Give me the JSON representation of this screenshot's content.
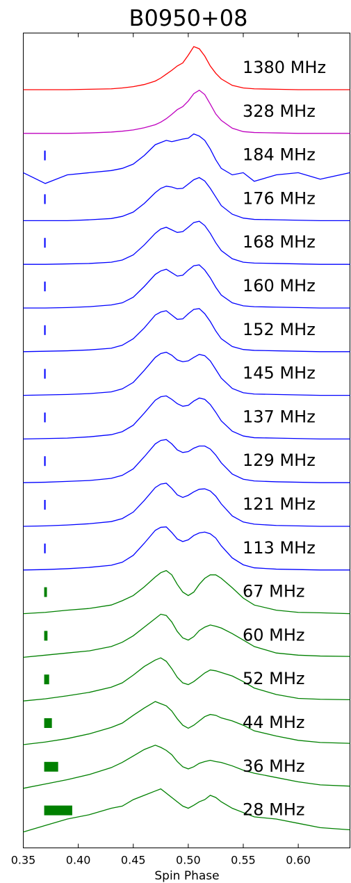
{
  "chart_data": {
    "type": "line",
    "title": "B0950+08",
    "x_label": "Spin Phase",
    "xlim": [
      0.35,
      0.647
    ],
    "xticks": [
      0.35,
      {
        "value": 0.4,
        "label": "0.40"
      },
      0.45,
      {
        "value": 0.5,
        "label": "0.50"
      },
      0.55,
      {
        "value": 0.6,
        "label": "0.60"
      }
    ],
    "resolution_x0": 0.369,
    "x": [
      0.35,
      0.37,
      0.39,
      0.41,
      0.43,
      0.44,
      0.45,
      0.46,
      0.47,
      0.475,
      0.48,
      0.485,
      0.49,
      0.495,
      0.5,
      0.505,
      0.51,
      0.515,
      0.52,
      0.525,
      0.53,
      0.54,
      0.55,
      0.56,
      0.58,
      0.6,
      0.62,
      0.647
    ],
    "series": [
      {
        "name": "1380 MHz",
        "color": "#ff0000",
        "values": [
          0,
          0,
          0,
          0.01,
          0.02,
          0.04,
          0.07,
          0.12,
          0.2,
          0.27,
          0.36,
          0.45,
          0.55,
          0.62,
          0.8,
          1,
          0.95,
          0.78,
          0.55,
          0.38,
          0.25,
          0.1,
          0.04,
          0.02,
          0.01,
          0,
          0,
          0
        ]
      },
      {
        "name": "328 MHz",
        "color": "#bf00bf",
        "values": [
          0,
          0,
          0,
          0.01,
          0.03,
          0.05,
          0.08,
          0.13,
          0.2,
          0.26,
          0.34,
          0.44,
          0.55,
          0.62,
          0.75,
          0.92,
          1,
          0.9,
          0.68,
          0.45,
          0.3,
          0.12,
          0.04,
          0.02,
          0.01,
          0,
          0,
          0
        ]
      },
      {
        "name": "184 MHz",
        "color": "#0000ff",
        "resolution": 0.0013,
        "values": [
          0.1,
          -0.15,
          0.05,
          0.1,
          0.15,
          0.2,
          0.3,
          0.5,
          0.75,
          0.8,
          0.85,
          0.82,
          0.85,
          0.88,
          0.9,
          1,
          0.95,
          0.85,
          0.65,
          0.4,
          0.2,
          0.05,
          0.1,
          -0.1,
          0.05,
          0.1,
          -0.05,
          0.1
        ]
      },
      {
        "name": "176 MHz",
        "color": "#0000ff",
        "resolution": 0.0013,
        "values": [
          0,
          0,
          0,
          0.02,
          0.05,
          0.1,
          0.2,
          0.4,
          0.65,
          0.75,
          0.8,
          0.78,
          0.74,
          0.75,
          0.85,
          0.95,
          1,
          0.92,
          0.75,
          0.55,
          0.35,
          0.15,
          0.06,
          0.03,
          0.02,
          0.01,
          0,
          0
        ]
      },
      {
        "name": "168 MHz",
        "color": "#0000ff",
        "resolution": 0.0013,
        "values": [
          0,
          0,
          0.01,
          0.02,
          0.05,
          0.1,
          0.22,
          0.45,
          0.72,
          0.82,
          0.86,
          0.8,
          0.74,
          0.76,
          0.86,
          0.97,
          1,
          0.9,
          0.72,
          0.5,
          0.32,
          0.13,
          0.05,
          0.03,
          0.02,
          0.01,
          0,
          0
        ]
      },
      {
        "name": "160 MHz",
        "color": "#0000ff",
        "resolution": 0.0013,
        "values": [
          0,
          0,
          0.01,
          0.03,
          0.07,
          0.12,
          0.25,
          0.5,
          0.78,
          0.86,
          0.9,
          0.82,
          0.74,
          0.76,
          0.88,
          0.98,
          1,
          0.88,
          0.7,
          0.48,
          0.3,
          0.12,
          0.05,
          0.03,
          0.02,
          0.01,
          0,
          0
        ]
      },
      {
        "name": "152 MHz",
        "color": "#0000ff",
        "resolution": 0.0013,
        "values": [
          0,
          0.01,
          0.02,
          0.04,
          0.08,
          0.15,
          0.3,
          0.55,
          0.85,
          0.92,
          0.95,
          0.85,
          0.75,
          0.76,
          0.88,
          0.98,
          1,
          0.88,
          0.7,
          0.48,
          0.3,
          0.12,
          0.05,
          0.03,
          0.02,
          0.01,
          0,
          0
        ]
      },
      {
        "name": "145 MHz",
        "color": "#0000ff",
        "resolution": 0.0013,
        "values": [
          0,
          0.01,
          0.02,
          0.04,
          0.08,
          0.15,
          0.3,
          0.58,
          0.88,
          0.97,
          1,
          0.93,
          0.82,
          0.78,
          0.8,
          0.88,
          0.95,
          0.92,
          0.8,
          0.6,
          0.4,
          0.16,
          0.06,
          0.03,
          0.02,
          0.01,
          0,
          0
        ]
      },
      {
        "name": "137 MHz",
        "color": "#0000ff",
        "resolution": 0.0013,
        "values": [
          0,
          0.01,
          0.02,
          0.05,
          0.1,
          0.17,
          0.32,
          0.6,
          0.9,
          0.98,
          1,
          0.92,
          0.82,
          0.76,
          0.78,
          0.88,
          0.95,
          0.92,
          0.8,
          0.62,
          0.42,
          0.18,
          0.07,
          0.03,
          0.02,
          0.01,
          0,
          0
        ]
      },
      {
        "name": "129 MHz",
        "color": "#0000ff",
        "resolution": 0.0013,
        "values": [
          0,
          0.01,
          0.03,
          0.05,
          0.1,
          0.17,
          0.32,
          0.6,
          0.9,
          0.98,
          1,
          0.9,
          0.76,
          0.7,
          0.72,
          0.8,
          0.85,
          0.85,
          0.78,
          0.64,
          0.46,
          0.2,
          0.08,
          0.04,
          0.02,
          0.01,
          0,
          0
        ]
      },
      {
        "name": "121 MHz",
        "color": "#0000ff",
        "resolution": 0.0013,
        "values": [
          0,
          0.01,
          0.03,
          0.06,
          0.11,
          0.18,
          0.33,
          0.6,
          0.9,
          0.98,
          1,
          0.88,
          0.73,
          0.67,
          0.72,
          0.8,
          0.86,
          0.87,
          0.82,
          0.7,
          0.52,
          0.24,
          0.1,
          0.05,
          0.02,
          0.01,
          0,
          0
        ]
      },
      {
        "name": "113 MHz",
        "color": "#0000ff",
        "resolution": 0.0013,
        "values": [
          0,
          0.01,
          0.03,
          0.06,
          0.11,
          0.18,
          0.34,
          0.62,
          0.92,
          0.99,
          1,
          0.87,
          0.72,
          0.66,
          0.7,
          0.8,
          0.86,
          0.88,
          0.84,
          0.74,
          0.56,
          0.28,
          0.12,
          0.05,
          0.02,
          0.01,
          0,
          0
        ]
      },
      {
        "name": "67 MHz",
        "color": "#008000",
        "resolution": 0.0025,
        "values": [
          0,
          0.03,
          0.08,
          0.12,
          0.2,
          0.3,
          0.42,
          0.62,
          0.85,
          0.95,
          1,
          0.9,
          0.68,
          0.5,
          0.42,
          0.5,
          0.68,
          0.82,
          0.9,
          0.9,
          0.82,
          0.6,
          0.36,
          0.2,
          0.08,
          0.03,
          0.02,
          0
        ]
      },
      {
        "name": "60 MHz",
        "color": "#008000",
        "resolution": 0.003,
        "values": [
          0,
          0.05,
          0.1,
          0.15,
          0.25,
          0.35,
          0.5,
          0.7,
          0.9,
          1,
          0.97,
          0.82,
          0.6,
          0.45,
          0.4,
          0.48,
          0.62,
          0.7,
          0.75,
          0.72,
          0.68,
          0.55,
          0.4,
          0.25,
          0.1,
          0.05,
          0.03,
          0.02
        ]
      },
      {
        "name": "52 MHz",
        "color": "#008000",
        "resolution": 0.0045,
        "values": [
          0,
          0.05,
          0.12,
          0.2,
          0.32,
          0.42,
          0.6,
          0.8,
          0.95,
          1,
          0.92,
          0.75,
          0.55,
          0.42,
          0.38,
          0.45,
          0.55,
          0.65,
          0.72,
          0.7,
          0.66,
          0.58,
          0.45,
          0.3,
          0.15,
          0.06,
          0.04,
          0.03
        ]
      },
      {
        "name": "44 MHz",
        "color": "#008000",
        "resolution": 0.007,
        "values": [
          0,
          0.06,
          0.14,
          0.25,
          0.4,
          0.5,
          0.68,
          0.85,
          1,
          0.95,
          0.9,
          0.78,
          0.6,
          0.45,
          0.38,
          0.45,
          0.55,
          0.65,
          0.7,
          0.68,
          0.62,
          0.55,
          0.45,
          0.32,
          0.2,
          0.1,
          0.05,
          0.03
        ]
      },
      {
        "name": "36 MHz",
        "color": "#008000",
        "resolution": 0.0127,
        "values": [
          0,
          0.1,
          0.2,
          0.32,
          0.48,
          0.6,
          0.75,
          0.9,
          1,
          0.95,
          0.88,
          0.78,
          0.62,
          0.5,
          0.45,
          0.5,
          0.58,
          0.62,
          0.65,
          0.62,
          0.6,
          0.52,
          0.42,
          0.35,
          0.25,
          0.15,
          0.08,
          0.05
        ]
      },
      {
        "name": "28 MHz",
        "color": "#008000",
        "resolution": 0.0255,
        "values": [
          0,
          0.15,
          0.3,
          0.4,
          0.55,
          0.6,
          0.75,
          0.85,
          0.95,
          1,
          0.9,
          0.8,
          0.7,
          0.6,
          0.55,
          0.62,
          0.7,
          0.75,
          0.85,
          0.8,
          0.7,
          0.55,
          0.45,
          0.35,
          0.3,
          0.2,
          0.1,
          0.05
        ]
      }
    ]
  }
}
